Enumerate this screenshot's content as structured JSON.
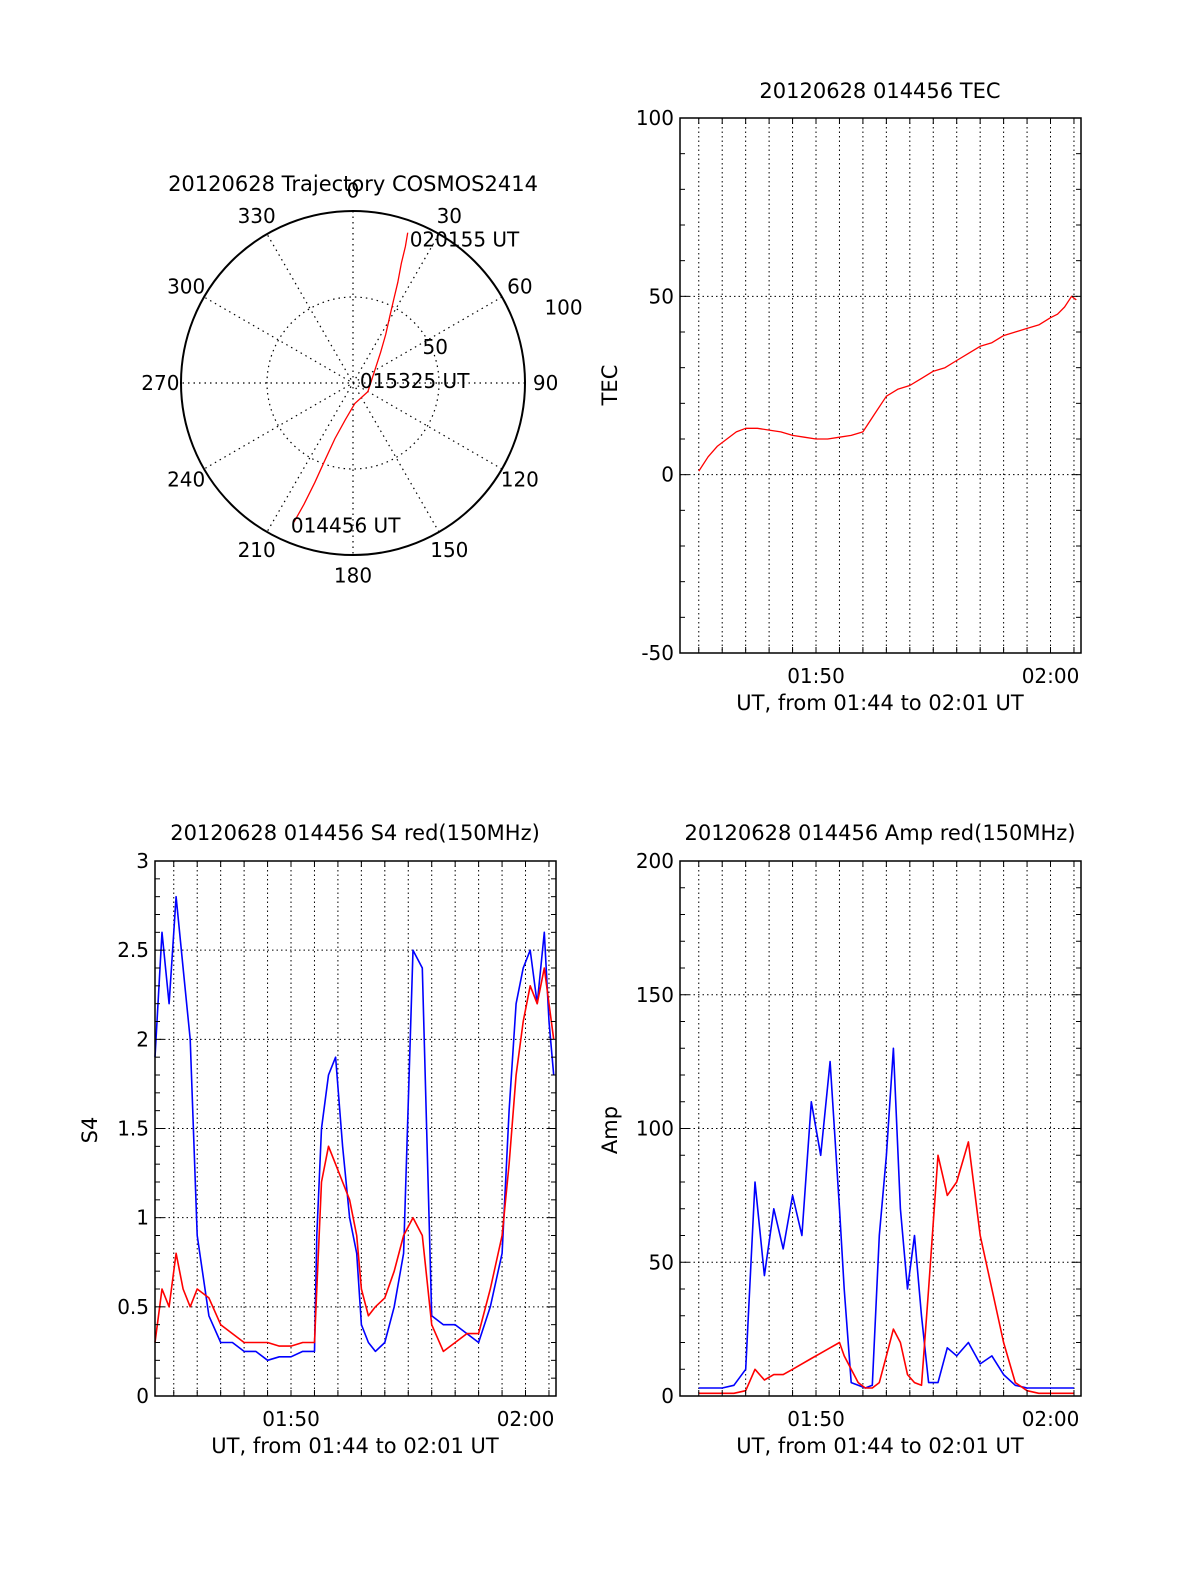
{
  "figure": {
    "background": "#ffffff",
    "axis_color": "#000000",
    "grid_color": "#000000"
  },
  "chart_data": [
    {
      "id": "trajectory",
      "type": "scatter",
      "projection": "polar",
      "title": "20120628 Trajectory COSMOS2414",
      "azimuth_labels": [
        "0",
        "30",
        "60",
        "90",
        "120",
        "150",
        "180",
        "210",
        "240",
        "270",
        "300",
        "330"
      ],
      "azimuth_deg": [
        0,
        30,
        60,
        90,
        120,
        150,
        180,
        210,
        240,
        270,
        300,
        330
      ],
      "radial_rings": [
        50,
        100
      ],
      "radial_labels": [
        "50",
        "100"
      ],
      "radial_max": 100,
      "grid": true,
      "series": [
        {
          "color": "#ff0000",
          "azimuth_deg": [
            20,
            21,
            22,
            24,
            26,
            29,
            34,
            42,
            120,
            175,
            192,
            198,
            200,
            201,
            202,
            203
          ],
          "zenith": [
            93,
            85,
            75,
            64,
            54,
            44,
            34,
            24,
            10,
            12,
            22,
            34,
            48,
            62,
            76,
            88
          ]
        }
      ],
      "annotations": [
        {
          "text": "020155 UT",
          "azimuth_deg": 20,
          "zenith": 93
        },
        {
          "text": "015325 UT",
          "azimuth_deg": 110,
          "zenith": 3
        },
        {
          "text": "014456 UT",
          "azimuth_deg": 203,
          "zenith": 88
        }
      ]
    },
    {
      "id": "tec",
      "type": "line",
      "title": "20120628 014456 TEC",
      "xlabel": "UT, from 01:44 to 02:01 UT",
      "ylabel": "TEC",
      "xlim": [
        104.2,
        121.3
      ],
      "ylim": [
        -50,
        100
      ],
      "x_ticks": [
        110,
        120
      ],
      "x_tick_labels": [
        "01:50",
        "02:00"
      ],
      "x_grid": [
        105,
        106,
        107,
        108,
        109,
        110,
        111,
        112,
        113,
        114,
        115,
        116,
        117,
        118,
        119,
        120,
        121
      ],
      "y_ticks": [
        -50,
        0,
        50,
        100
      ],
      "y_tick_labels": [
        "-50",
        "0",
        "50",
        "100"
      ],
      "grid": true,
      "series": [
        {
          "color": "#ff0000",
          "x": [
            105.0,
            105.4,
            105.8,
            106.2,
            106.6,
            107.0,
            107.5,
            108.0,
            108.5,
            109.0,
            109.5,
            110.0,
            110.5,
            111.0,
            111.5,
            112.0,
            112.5,
            113.0,
            113.5,
            114.0,
            114.5,
            115.0,
            115.5,
            116.0,
            116.5,
            117.0,
            117.5,
            118.0,
            118.5,
            119.0,
            119.5,
            120.0,
            120.3,
            120.6,
            120.9,
            121.1
          ],
          "y": [
            1,
            5,
            8,
            10,
            12,
            13,
            13,
            12.5,
            12,
            11,
            10.5,
            10,
            10,
            10.5,
            11,
            12,
            17,
            22,
            24,
            25,
            27,
            29,
            30,
            32,
            34,
            36,
            37,
            39,
            40,
            41,
            42,
            44,
            45,
            47,
            50,
            49
          ]
        }
      ]
    },
    {
      "id": "s4",
      "type": "line",
      "title": "20120628 014456 S4 red(150MHz)",
      "xlabel": "UT, from 01:44 to 02:01 UT",
      "ylabel": "S4",
      "xlim": [
        104.2,
        121.3
      ],
      "ylim": [
        0,
        3
      ],
      "x_ticks": [
        110,
        120
      ],
      "x_tick_labels": [
        "01:50",
        "02:00"
      ],
      "x_grid": [
        105,
        106,
        107,
        108,
        109,
        110,
        111,
        112,
        113,
        114,
        115,
        116,
        117,
        118,
        119,
        120,
        121
      ],
      "y_ticks": [
        0,
        0.5,
        1,
        1.5,
        2,
        2.5,
        3
      ],
      "y_tick_labels": [
        "0",
        "0.5",
        "1",
        "1.5",
        "2",
        "2.5",
        "3"
      ],
      "grid": true,
      "series": [
        {
          "color": "#0000ff",
          "x": [
            104.2,
            104.5,
            104.8,
            105.1,
            105.4,
            105.7,
            106.0,
            106.5,
            107.0,
            107.5,
            108.0,
            108.5,
            109.0,
            109.5,
            110.0,
            110.5,
            111.0,
            111.1,
            111.3,
            111.6,
            111.9,
            112.2,
            112.5,
            112.8,
            113.0,
            113.3,
            113.6,
            114.0,
            114.4,
            114.8,
            115.2,
            115.6,
            116.0,
            116.5,
            117.0,
            117.5,
            118.0,
            118.5,
            119.0,
            119.3,
            119.6,
            119.9,
            120.2,
            120.5,
            120.8,
            121.0,
            121.2
          ],
          "y": [
            1.9,
            2.6,
            2.2,
            2.8,
            2.4,
            2.0,
            0.9,
            0.45,
            0.3,
            0.3,
            0.25,
            0.25,
            0.2,
            0.22,
            0.22,
            0.25,
            0.25,
            0.9,
            1.5,
            1.8,
            1.9,
            1.4,
            1.0,
            0.8,
            0.4,
            0.3,
            0.25,
            0.3,
            0.5,
            0.8,
            2.5,
            2.4,
            0.45,
            0.4,
            0.4,
            0.35,
            0.3,
            0.5,
            0.8,
            1.6,
            2.2,
            2.4,
            2.5,
            2.2,
            2.6,
            2.1,
            1.8
          ]
        },
        {
          "color": "#ff0000",
          "x": [
            104.2,
            104.5,
            104.8,
            105.1,
            105.4,
            105.7,
            106.0,
            106.5,
            107.0,
            107.5,
            108.0,
            108.5,
            109.0,
            109.5,
            110.0,
            110.5,
            111.0,
            111.1,
            111.3,
            111.6,
            111.9,
            112.2,
            112.5,
            112.8,
            113.0,
            113.3,
            113.6,
            114.0,
            114.4,
            114.8,
            115.2,
            115.6,
            116.0,
            116.5,
            117.0,
            117.5,
            118.0,
            118.5,
            119.0,
            119.3,
            119.6,
            119.9,
            120.2,
            120.5,
            120.8,
            121.0,
            121.2
          ],
          "y": [
            0.3,
            0.6,
            0.5,
            0.8,
            0.6,
            0.5,
            0.6,
            0.55,
            0.4,
            0.35,
            0.3,
            0.3,
            0.3,
            0.28,
            0.28,
            0.3,
            0.3,
            0.6,
            1.2,
            1.4,
            1.3,
            1.2,
            1.1,
            0.9,
            0.6,
            0.45,
            0.5,
            0.55,
            0.7,
            0.9,
            1.0,
            0.9,
            0.4,
            0.25,
            0.3,
            0.35,
            0.35,
            0.6,
            0.9,
            1.3,
            1.8,
            2.1,
            2.3,
            2.2,
            2.4,
            2.2,
            2.0
          ]
        }
      ]
    },
    {
      "id": "amp",
      "type": "line",
      "title": "20120628 014456 Amp red(150MHz)",
      "xlabel": "UT, from 01:44 to 02:01 UT",
      "ylabel": "Amp",
      "xlim": [
        104.2,
        121.3
      ],
      "ylim": [
        0,
        200
      ],
      "x_ticks": [
        110,
        120
      ],
      "x_tick_labels": [
        "01:50",
        "02:00"
      ],
      "x_grid": [
        105,
        106,
        107,
        108,
        109,
        110,
        111,
        112,
        113,
        114,
        115,
        116,
        117,
        118,
        119,
        120,
        121
      ],
      "y_ticks": [
        0,
        50,
        100,
        150,
        200
      ],
      "y_tick_labels": [
        "0",
        "50",
        "100",
        "150",
        "200"
      ],
      "grid": true,
      "series": [
        {
          "color": "#0000ff",
          "x": [
            105.0,
            105.5,
            106.0,
            106.5,
            107.0,
            107.4,
            107.8,
            108.2,
            108.6,
            109.0,
            109.4,
            109.8,
            110.2,
            110.6,
            111.0,
            111.2,
            111.5,
            111.8,
            112.1,
            112.4,
            112.7,
            113.0,
            113.3,
            113.6,
            113.9,
            114.2,
            114.5,
            114.8,
            115.2,
            115.6,
            116.0,
            116.5,
            117.0,
            117.5,
            118.0,
            118.5,
            119.0,
            119.5,
            120.0,
            120.5,
            121.0
          ],
          "y": [
            3,
            3,
            3,
            4,
            10,
            80,
            45,
            70,
            55,
            75,
            60,
            110,
            90,
            125,
            70,
            40,
            5,
            4,
            3,
            4,
            60,
            90,
            130,
            70,
            40,
            60,
            30,
            5,
            5,
            18,
            15,
            20,
            12,
            15,
            8,
            4,
            3,
            3,
            3,
            3,
            3
          ]
        },
        {
          "color": "#ff0000",
          "x": [
            105.0,
            105.5,
            106.0,
            106.5,
            107.0,
            107.4,
            107.8,
            108.2,
            108.6,
            109.0,
            109.4,
            109.8,
            110.2,
            110.6,
            111.0,
            111.2,
            111.5,
            111.8,
            112.1,
            112.4,
            112.7,
            113.0,
            113.3,
            113.6,
            113.9,
            114.2,
            114.5,
            114.8,
            115.2,
            115.6,
            116.0,
            116.5,
            117.0,
            117.5,
            118.0,
            118.5,
            119.0,
            119.5,
            120.0,
            120.5,
            121.0
          ],
          "y": [
            1,
            1,
            1,
            1,
            2,
            10,
            6,
            8,
            8,
            10,
            12,
            14,
            16,
            18,
            20,
            15,
            10,
            5,
            3,
            3,
            5,
            15,
            25,
            20,
            8,
            5,
            4,
            40,
            90,
            75,
            80,
            95,
            60,
            40,
            20,
            5,
            2,
            1,
            1,
            1,
            1
          ]
        }
      ]
    }
  ]
}
